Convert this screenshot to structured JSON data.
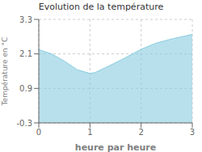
{
  "chart_data": {
    "type": "area",
    "title": "Evolution de la température",
    "xlabel": "heure par heure",
    "ylabel": "Température en °C",
    "x": [
      0,
      0.25,
      0.5,
      0.75,
      1.0,
      1.1,
      1.3,
      1.6,
      2.0,
      2.3,
      2.6,
      3.0
    ],
    "values": [
      2.25,
      2.1,
      1.85,
      1.55,
      1.42,
      1.45,
      1.62,
      1.88,
      2.26,
      2.48,
      2.62,
      2.78
    ],
    "color": "#88cce0",
    "xlim": [
      0,
      3
    ],
    "ylim": [
      -0.3,
      3.3
    ],
    "xticks": [
      0,
      1,
      2,
      3
    ],
    "yticks": [
      -0.3,
      0.9,
      2.1,
      3.3
    ],
    "grid": true
  }
}
